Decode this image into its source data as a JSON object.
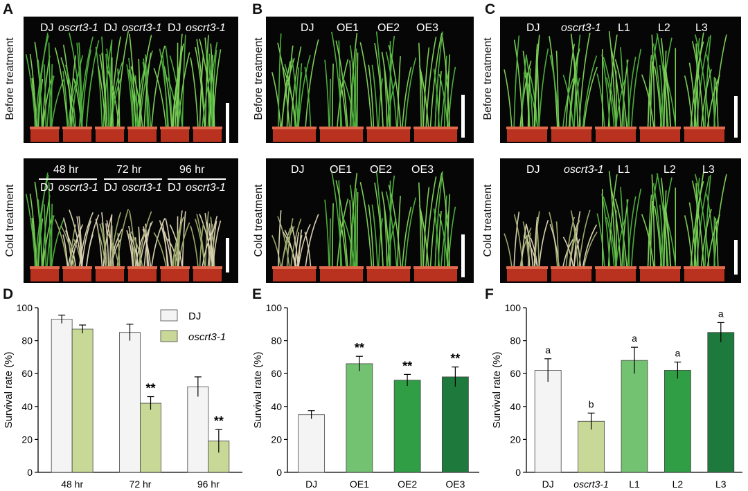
{
  "panel_letters": [
    "A",
    "B",
    "C",
    "D",
    "E",
    "F"
  ],
  "photo_rows": {
    "before": "Before treatment",
    "cold": "Cold treatment"
  },
  "panelA": {
    "top_labels": [
      "DJ",
      "oscrt3-1",
      "DJ",
      "oscrt3-1",
      "DJ",
      "oscrt3-1"
    ],
    "times": [
      "48 hr",
      "72 hr",
      "96 hr"
    ],
    "bottom_labels": [
      "DJ",
      "oscrt3-1",
      "DJ",
      "oscrt3-1",
      "DJ",
      "oscrt3-1"
    ]
  },
  "panelB": {
    "labels": [
      "DJ",
      "OE1",
      "OE2",
      "OE3"
    ]
  },
  "panelC": {
    "labels": [
      "DJ",
      "oscrt3-1",
      "L1",
      "L2",
      "L3"
    ]
  },
  "colors": {
    "dj": "#f4f4f4",
    "mutant": "#c8d896",
    "oe1": "#72c272",
    "oe2": "#2f9e44",
    "oe3": "#1e7a3c",
    "l1": "#72c272",
    "l2": "#2f9e44",
    "l3": "#1e7a3c"
  },
  "chart_data": [
    {
      "id": "D",
      "type": "bar",
      "ylabel": "Survival rate (%)",
      "ylim": [
        0,
        100
      ],
      "yticks": [
        0,
        20,
        40,
        60,
        80,
        100
      ],
      "categories": [
        "48 hr",
        "72 hr",
        "96 hr"
      ],
      "series": [
        {
          "name": "DJ",
          "values": [
            93,
            85,
            52
          ],
          "errors": [
            2.5,
            5,
            6
          ],
          "color": "#f4f4f4"
        },
        {
          "name": "oscrt3-1",
          "values": [
            87,
            42,
            19
          ],
          "errors": [
            2.5,
            4,
            7
          ],
          "color": "#c8d896"
        }
      ],
      "annotations": [
        "",
        "**",
        "**"
      ],
      "legend": [
        "DJ",
        "oscrt3-1"
      ]
    },
    {
      "id": "E",
      "type": "bar",
      "ylabel": "Survival rate (%)",
      "ylim": [
        0,
        100
      ],
      "yticks": [
        0,
        20,
        40,
        60,
        80,
        100
      ],
      "categories": [
        "DJ",
        "OE1",
        "OE2",
        "OE3"
      ],
      "values": [
        35,
        66,
        56,
        58
      ],
      "errors": [
        2.5,
        4.5,
        3.5,
        6
      ],
      "colors": [
        "#f4f4f4",
        "#72c272",
        "#2f9e44",
        "#1e7a3c"
      ],
      "annotations": [
        "",
        "**",
        "**",
        "**"
      ]
    },
    {
      "id": "F",
      "type": "bar",
      "ylabel": "Survival rate (%)",
      "ylim": [
        0,
        100
      ],
      "yticks": [
        0,
        20,
        40,
        60,
        80,
        100
      ],
      "categories": [
        "DJ",
        "oscrt3-1",
        "L1",
        "L2",
        "L3"
      ],
      "values": [
        62,
        31,
        68,
        62,
        85
      ],
      "errors": [
        7,
        5,
        8,
        5,
        6
      ],
      "colors": [
        "#f4f4f4",
        "#c8d896",
        "#72c272",
        "#2f9e44",
        "#1e7a3c"
      ],
      "annotations": [
        "a",
        "b",
        "a",
        "a",
        "a"
      ]
    }
  ]
}
